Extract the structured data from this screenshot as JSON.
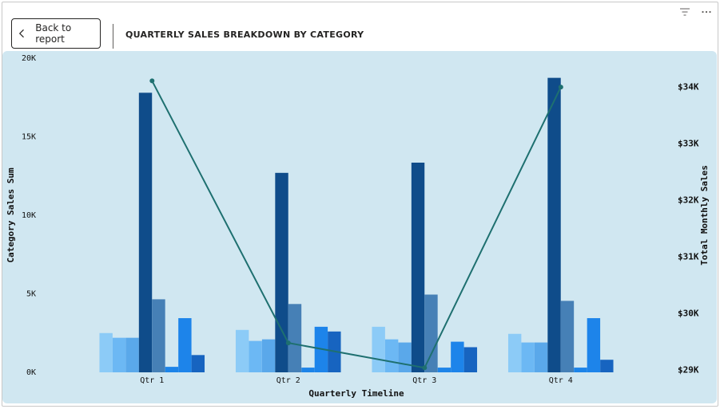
{
  "header": {
    "back_label": "Back to report",
    "title": "QUARTERLY SALES BREAKDOWN BY CATEGORY"
  },
  "colors": {
    "chart_bg": "#d0e7f1",
    "line": "#1e7070",
    "bars": [
      "#8ccbf7",
      "#6cb8f4",
      "#5aa8ea",
      "#0f4c8a",
      "#4680b6",
      "#1d84e8",
      "#1d84ea",
      "#1764c0"
    ]
  },
  "chart_data": {
    "type": "bar",
    "categories": [
      "Qtr 1",
      "Qtr 2",
      "Qtr 3",
      "Qtr 4"
    ],
    "series": [
      {
        "values": [
          2500,
          2700,
          2900,
          2450
        ]
      },
      {
        "values": [
          2200,
          2000,
          2100,
          1900
        ]
      },
      {
        "values": [
          2200,
          2100,
          1900,
          1900
        ]
      },
      {
        "values": [
          17800,
          12700,
          13350,
          18750
        ]
      },
      {
        "values": [
          4650,
          4350,
          4950,
          4550
        ]
      },
      {
        "values": [
          350,
          300,
          300,
          300
        ]
      },
      {
        "values": [
          3450,
          2900,
          1950,
          3450
        ]
      },
      {
        "values": [
          1100,
          2600,
          1600,
          800
        ]
      }
    ],
    "line": {
      "values": [
        34100,
        29470,
        29030,
        33990
      ]
    },
    "xlabel": "Quarterly Timeline",
    "ylabel": "Category Sales Sum",
    "y2label": "Total Monthly Sales",
    "ylim": [
      0,
      20000
    ],
    "y2lim": [
      28950,
      34500
    ],
    "yticks": [
      0,
      5000,
      10000,
      15000,
      20000
    ],
    "yticklabels": [
      "0K",
      "5K",
      "10K",
      "15K",
      "20K"
    ],
    "y2ticks": [
      29000,
      30000,
      31000,
      32000,
      33000,
      34000
    ],
    "y2ticklabels": [
      "$29K",
      "$30K",
      "$31K",
      "$32K",
      "$33K",
      "$34K"
    ],
    "grid": false,
    "legend": "none"
  }
}
